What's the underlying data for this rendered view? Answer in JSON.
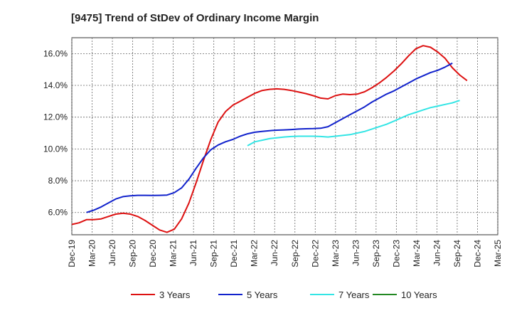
{
  "chart_data": {
    "type": "line",
    "title": "[9475]  Trend of StDev of Ordinary Income Margin",
    "xlabel": "",
    "ylabel": "",
    "x_tick_labels": [
      "Dec-19",
      "Mar-20",
      "Jun-20",
      "Sep-20",
      "Dec-20",
      "Mar-21",
      "Jun-21",
      "Sep-21",
      "Dec-21",
      "Mar-22",
      "Jun-22",
      "Sep-22",
      "Dec-22",
      "Mar-23",
      "Jun-23",
      "Sep-23",
      "Dec-23",
      "Mar-24",
      "Jun-24",
      "Sep-24",
      "Dec-24",
      "Mar-25"
    ],
    "y_ticks": [
      6.0,
      8.0,
      10.0,
      12.0,
      14.0,
      16.0
    ],
    "y_tick_labels": [
      "6.0%",
      "8.0%",
      "10.0%",
      "12.0%",
      "14.0%",
      "16.0%"
    ],
    "ylim": [
      4.6,
      17.0
    ],
    "grid": true,
    "legend_position": "bottom",
    "colors": {
      "3 Years": "#dd1111",
      "5 Years": "#1122cc",
      "7 Years": "#33e5e5",
      "10 Years": "#228822"
    },
    "series": [
      {
        "name": "3 Years",
        "color": "#dd1111",
        "values": [
          5.25,
          5.35,
          5.55,
          5.55,
          5.6,
          5.75,
          5.9,
          5.95,
          5.9,
          5.75,
          5.5,
          5.2,
          4.9,
          4.75,
          4.95,
          5.6,
          6.6,
          7.9,
          9.3,
          10.6,
          11.7,
          12.35,
          12.75,
          13.0,
          13.25,
          13.5,
          13.68,
          13.75,
          13.78,
          13.75,
          13.68,
          13.58,
          13.48,
          13.35,
          13.2,
          13.15,
          13.35,
          13.45,
          13.42,
          13.45,
          13.6,
          13.85,
          14.15,
          14.5,
          14.9,
          15.35,
          15.85,
          16.3,
          16.5,
          16.4,
          16.1,
          15.7,
          15.1,
          14.65,
          14.3
        ]
      },
      {
        "name": "5 Years",
        "color": "#1122cc",
        "values": [
          null,
          null,
          6.0,
          6.15,
          6.35,
          6.6,
          6.85,
          7.0,
          7.05,
          7.08,
          7.08,
          7.07,
          7.08,
          7.1,
          7.25,
          7.55,
          8.1,
          8.8,
          9.45,
          9.95,
          10.25,
          10.45,
          10.6,
          10.8,
          10.95,
          11.05,
          11.1,
          11.15,
          11.18,
          11.2,
          11.22,
          11.25,
          11.27,
          11.28,
          11.3,
          11.4,
          11.65,
          11.9,
          12.15,
          12.4,
          12.65,
          12.95,
          13.2,
          13.45,
          13.65,
          13.9,
          14.15,
          14.4,
          14.6,
          14.8,
          14.95,
          15.15,
          15.4,
          null,
          null
        ]
      },
      {
        "name": "7 Years",
        "color": "#33e5e5",
        "values": [
          null,
          null,
          null,
          null,
          null,
          null,
          null,
          null,
          null,
          null,
          null,
          null,
          null,
          null,
          null,
          null,
          null,
          null,
          null,
          null,
          null,
          null,
          null,
          null,
          10.2,
          10.45,
          10.55,
          10.65,
          10.7,
          10.75,
          10.78,
          10.8,
          10.8,
          10.8,
          10.78,
          10.75,
          10.8,
          10.85,
          10.9,
          11.0,
          11.1,
          11.25,
          11.4,
          11.55,
          11.75,
          11.95,
          12.15,
          12.3,
          12.45,
          12.6,
          12.7,
          12.8,
          12.9,
          13.05,
          null
        ]
      },
      {
        "name": "10 Years",
        "color": "#228822",
        "values": []
      }
    ]
  }
}
